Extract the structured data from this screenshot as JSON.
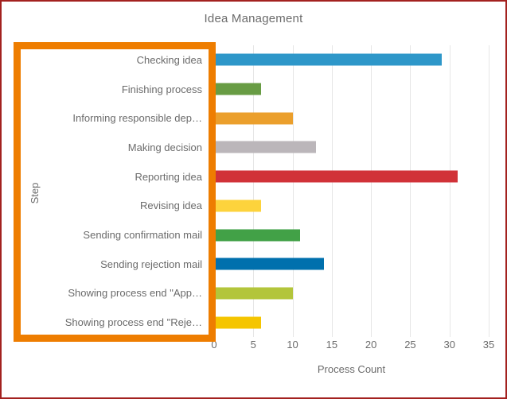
{
  "title": "Idea Management",
  "chart_data": {
    "type": "bar",
    "orientation": "horizontal",
    "title": "Idea Management",
    "xlabel": "Process Count",
    "ylabel": "Step",
    "xlim": [
      0,
      35
    ],
    "x_ticks": [
      0,
      5,
      10,
      15,
      20,
      25,
      30,
      35
    ],
    "grid": true,
    "legend": "none",
    "categories": [
      "Checking idea",
      "Finishing process",
      "Informing responsible dep…",
      "Making decision",
      "Reporting idea",
      "Revising idea",
      "Sending confirmation mail",
      "Sending rejection mail",
      "Showing process end \"App…",
      "Showing process end \"Reje…"
    ],
    "values": [
      29,
      6,
      10,
      13,
      31,
      6,
      11,
      14,
      10,
      6
    ],
    "bar_colors": [
      "#2e97c9",
      "#689c44",
      "#eb9f2c",
      "#bbb6ba",
      "#d13238",
      "#fdd33c",
      "#42a147",
      "#0070ad",
      "#b3c53b",
      "#f5c500"
    ]
  },
  "annotation": {
    "type": "highlight-box",
    "target": "y-axis step labels",
    "color": "#ee7d00"
  },
  "colors": {
    "outer_border": "#a3211f",
    "grid": "#e6e6e6",
    "text": "#6b6b6b",
    "background": "#ffffff"
  }
}
